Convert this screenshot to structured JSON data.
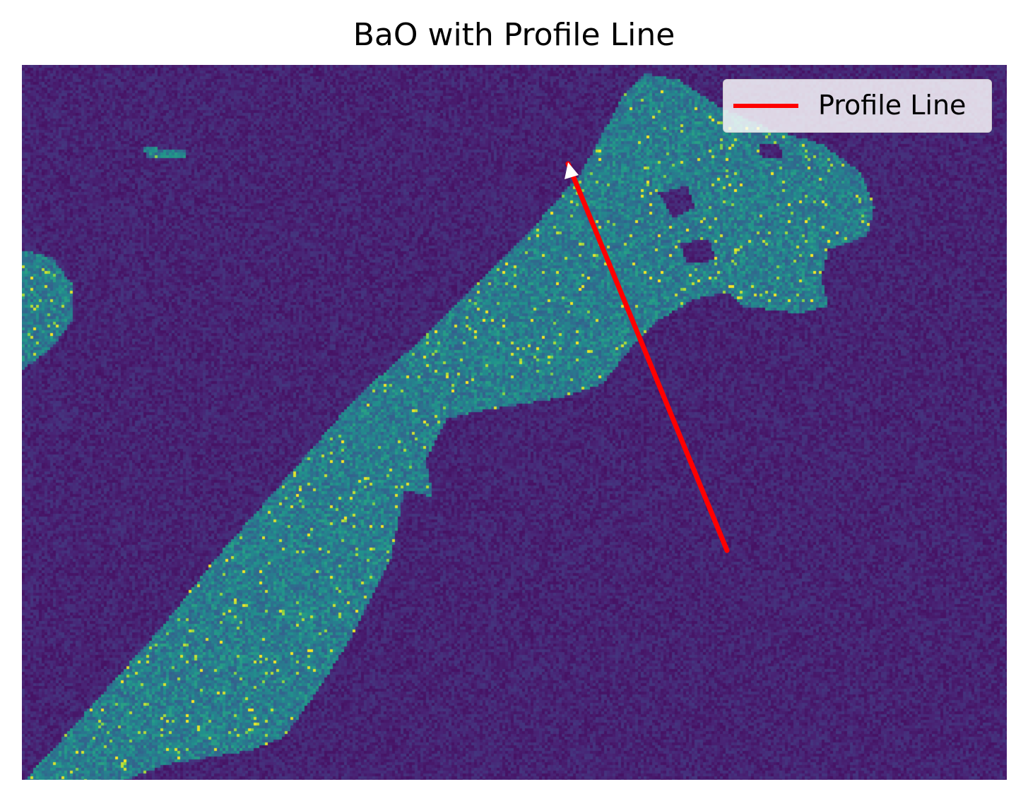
{
  "title": "BaO with Profile Line",
  "legend": {
    "label": "Profile Line"
  },
  "colors": {
    "background": "#440154",
    "profile_line": "#ff0000",
    "colormap": "viridis"
  },
  "profile_line": {
    "start_marker": "white-triangle"
  }
}
